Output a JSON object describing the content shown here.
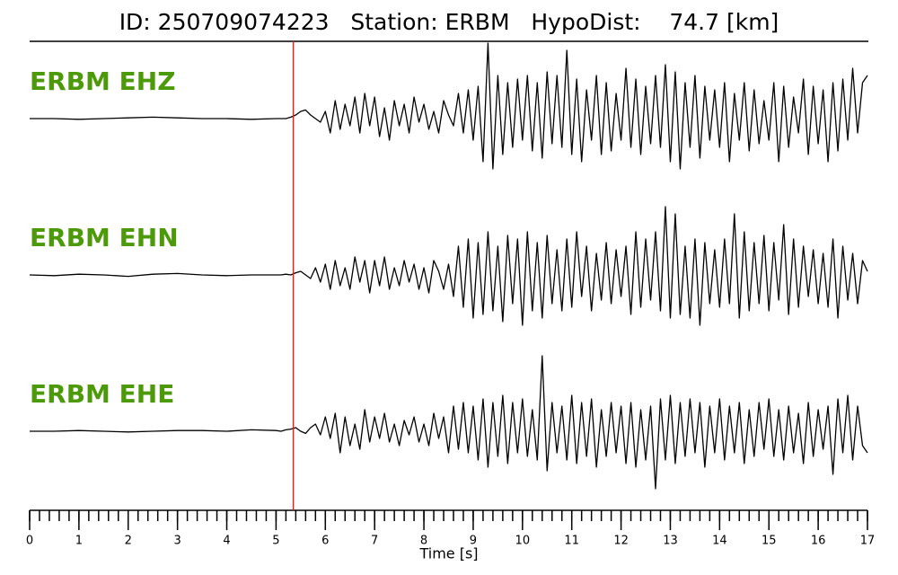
{
  "chart_data": {
    "type": "line",
    "title": "ID: 250709074223   Station: ERBM   HypoDist:    74.7 [km]",
    "xlabel": "Time [s]",
    "xlim": [
      0,
      17
    ],
    "xticks": [
      0,
      1,
      2,
      3,
      4,
      5,
      6,
      7,
      8,
      9,
      10,
      11,
      12,
      13,
      14,
      15,
      16,
      17
    ],
    "xminor_step": 0.2,
    "pick_time": 5.35,
    "pick_color": "#e8211d",
    "label_color": "#4c9a0a",
    "x": [
      0,
      0.5,
      1,
      1.5,
      2,
      2.5,
      3,
      3.5,
      4,
      4.5,
      5,
      5.1,
      5.2,
      5.3,
      5.4,
      5.5,
      5.6,
      5.7,
      5.8,
      5.9,
      6,
      6.1,
      6.2,
      6.3,
      6.4,
      6.5,
      6.6,
      6.7,
      6.8,
      6.9,
      7,
      7.1,
      7.2,
      7.3,
      7.4,
      7.5,
      7.6,
      7.7,
      7.8,
      7.9,
      8,
      8.1,
      8.2,
      8.3,
      8.4,
      8.5,
      8.6,
      8.7,
      8.8,
      8.9,
      9,
      9.1,
      9.2,
      9.3,
      9.4,
      9.5,
      9.6,
      9.7,
      9.8,
      9.9,
      10,
      10.1,
      10.2,
      10.3,
      10.4,
      10.5,
      10.6,
      10.7,
      10.8,
      10.9,
      11,
      11.1,
      11.2,
      11.3,
      11.4,
      11.5,
      11.6,
      11.7,
      11.8,
      11.9,
      12,
      12.1,
      12.2,
      12.3,
      12.4,
      12.5,
      12.6,
      12.7,
      12.8,
      12.9,
      13,
      13.1,
      13.2,
      13.3,
      13.4,
      13.5,
      13.6,
      13.7,
      13.8,
      13.9,
      14,
      14.1,
      14.2,
      14.3,
      14.4,
      14.5,
      14.6,
      14.7,
      14.8,
      14.9,
      15,
      15.1,
      15.2,
      15.3,
      15.4,
      15.5,
      15.6,
      15.7,
      15.8,
      15.9,
      16,
      16.1,
      16.2,
      16.3,
      16.4,
      16.5,
      16.6,
      16.7,
      16.8,
      16.9,
      17
    ],
    "series": [
      {
        "name": "ERBM EHZ",
        "color": "#000000",
        "values": [
          0,
          0,
          -0.01,
          0,
          0.01,
          0.02,
          0.01,
          0,
          0,
          -0.01,
          0,
          0,
          0,
          0.02,
          0.05,
          0.1,
          0.12,
          0.05,
          0,
          -0.05,
          0.1,
          -0.2,
          0.25,
          -0.15,
          0.2,
          -0.1,
          0.3,
          -0.2,
          0.35,
          -0.1,
          0.3,
          -0.25,
          0.15,
          -0.3,
          0.25,
          -0.1,
          0.2,
          -0.2,
          0.3,
          -0.05,
          0.2,
          -0.15,
          0.1,
          -0.2,
          0.25,
          0.05,
          -0.1,
          0.35,
          -0.2,
          0.4,
          -0.3,
          0.45,
          -0.6,
          1.05,
          -0.7,
          0.6,
          -0.5,
          0.5,
          -0.4,
          0.55,
          -0.3,
          0.6,
          -0.45,
          0.5,
          -0.55,
          0.65,
          -0.35,
          0.6,
          -0.4,
          0.95,
          -0.5,
          0.55,
          -0.6,
          0.4,
          -0.3,
          0.6,
          -0.5,
          0.5,
          -0.45,
          0.35,
          -0.3,
          0.7,
          -0.4,
          0.55,
          -0.5,
          0.45,
          -0.35,
          0.6,
          -0.4,
          0.75,
          -0.6,
          0.65,
          -0.7,
          0.5,
          -0.4,
          0.6,
          -0.55,
          0.45,
          -0.3,
          0.4,
          -0.4,
          0.5,
          -0.6,
          0.35,
          -0.3,
          0.5,
          -0.45,
          0.4,
          -0.35,
          0.25,
          -0.3,
          0.5,
          -0.6,
          0.45,
          -0.4,
          0.3,
          -0.2,
          0.55,
          -0.5,
          0.45,
          -0.35,
          0.4,
          -0.6,
          0.5,
          -0.45,
          0.55,
          -0.3,
          0.7,
          -0.2,
          0.5,
          0.6
        ]
      },
      {
        "name": "ERBM EHN",
        "color": "#000000",
        "values": [
          0,
          -0.01,
          0.01,
          0,
          -0.02,
          0.01,
          0.02,
          0,
          -0.01,
          0,
          0,
          0,
          0.01,
          0,
          0.03,
          0.05,
          0,
          -0.05,
          0.1,
          -0.1,
          0.15,
          -0.2,
          0.2,
          -0.15,
          0.1,
          -0.2,
          0.25,
          -0.1,
          0.2,
          -0.25,
          0.2,
          -0.15,
          0.25,
          -0.2,
          0.1,
          -0.15,
          0.2,
          -0.1,
          0.15,
          -0.2,
          0.1,
          -0.25,
          0.2,
          0.05,
          -0.2,
          0.15,
          -0.3,
          0.4,
          -0.45,
          0.5,
          -0.6,
          0.45,
          -0.55,
          0.6,
          -0.5,
          0.4,
          -0.65,
          0.55,
          -0.4,
          0.5,
          -0.7,
          0.6,
          -0.5,
          0.45,
          -0.6,
          0.55,
          -0.4,
          0.35,
          -0.5,
          0.5,
          -0.45,
          0.6,
          -0.3,
          0.4,
          -0.5,
          0.3,
          -0.35,
          0.45,
          -0.4,
          0.35,
          -0.3,
          0.4,
          -0.55,
          0.6,
          -0.45,
          0.5,
          -0.35,
          0.6,
          -0.5,
          0.95,
          -0.6,
          0.85,
          -0.55,
          0.4,
          -0.6,
          0.5,
          -0.7,
          0.45,
          -0.4,
          0.35,
          -0.45,
          0.5,
          -0.4,
          0.85,
          -0.6,
          0.6,
          -0.5,
          0.45,
          -0.4,
          0.55,
          -0.5,
          0.45,
          -0.35,
          0.7,
          -0.55,
          0.5,
          -0.45,
          0.4,
          -0.3,
          0.35,
          -0.4,
          0.3,
          -0.45,
          0.5,
          -0.6,
          0.4,
          -0.35,
          0.3,
          -0.4,
          0.2,
          0.05
        ]
      },
      {
        "name": "ERBM EHE",
        "color": "#000000",
        "values": [
          0,
          0,
          0.01,
          0,
          -0.01,
          0,
          0.01,
          0.01,
          0,
          0.02,
          0.01,
          0,
          0.02,
          0.03,
          0.05,
          0,
          -0.03,
          0.05,
          0.1,
          -0.05,
          0.2,
          -0.1,
          0.25,
          -0.3,
          0.2,
          -0.2,
          0.1,
          -0.25,
          0.3,
          -0.15,
          0.2,
          -0.1,
          0.25,
          -0.15,
          0.1,
          -0.2,
          0.15,
          -0.05,
          0.2,
          -0.15,
          0.1,
          -0.2,
          0.25,
          -0.1,
          0.2,
          -0.3,
          0.35,
          -0.25,
          0.4,
          -0.3,
          0.35,
          -0.4,
          0.45,
          -0.5,
          0.4,
          -0.35,
          0.5,
          -0.45,
          0.4,
          -0.3,
          0.45,
          -0.35,
          0.3,
          -0.4,
          1.05,
          -0.55,
          0.4,
          -0.3,
          0.35,
          -0.4,
          0.5,
          -0.45,
          0.4,
          -0.35,
          0.45,
          -0.5,
          0.3,
          -0.35,
          0.4,
          -0.3,
          0.35,
          -0.45,
          0.4,
          -0.5,
          0.3,
          -0.4,
          0.35,
          -0.8,
          0.45,
          -0.4,
          0.5,
          -0.45,
          0.4,
          -0.35,
          0.45,
          -0.3,
          0.4,
          -0.5,
          0.35,
          -0.3,
          0.45,
          -0.4,
          0.35,
          -0.3,
          0.4,
          -0.45,
          0.3,
          -0.35,
          0.4,
          -0.25,
          0.45,
          -0.35,
          0.3,
          -0.4,
          0.35,
          -0.3,
          0.25,
          -0.45,
          0.4,
          -0.35,
          0.3,
          -0.25,
          0.35,
          -0.6,
          0.45,
          -0.3,
          0.5,
          -0.4,
          0.35,
          -0.2,
          -0.3
        ]
      }
    ]
  }
}
